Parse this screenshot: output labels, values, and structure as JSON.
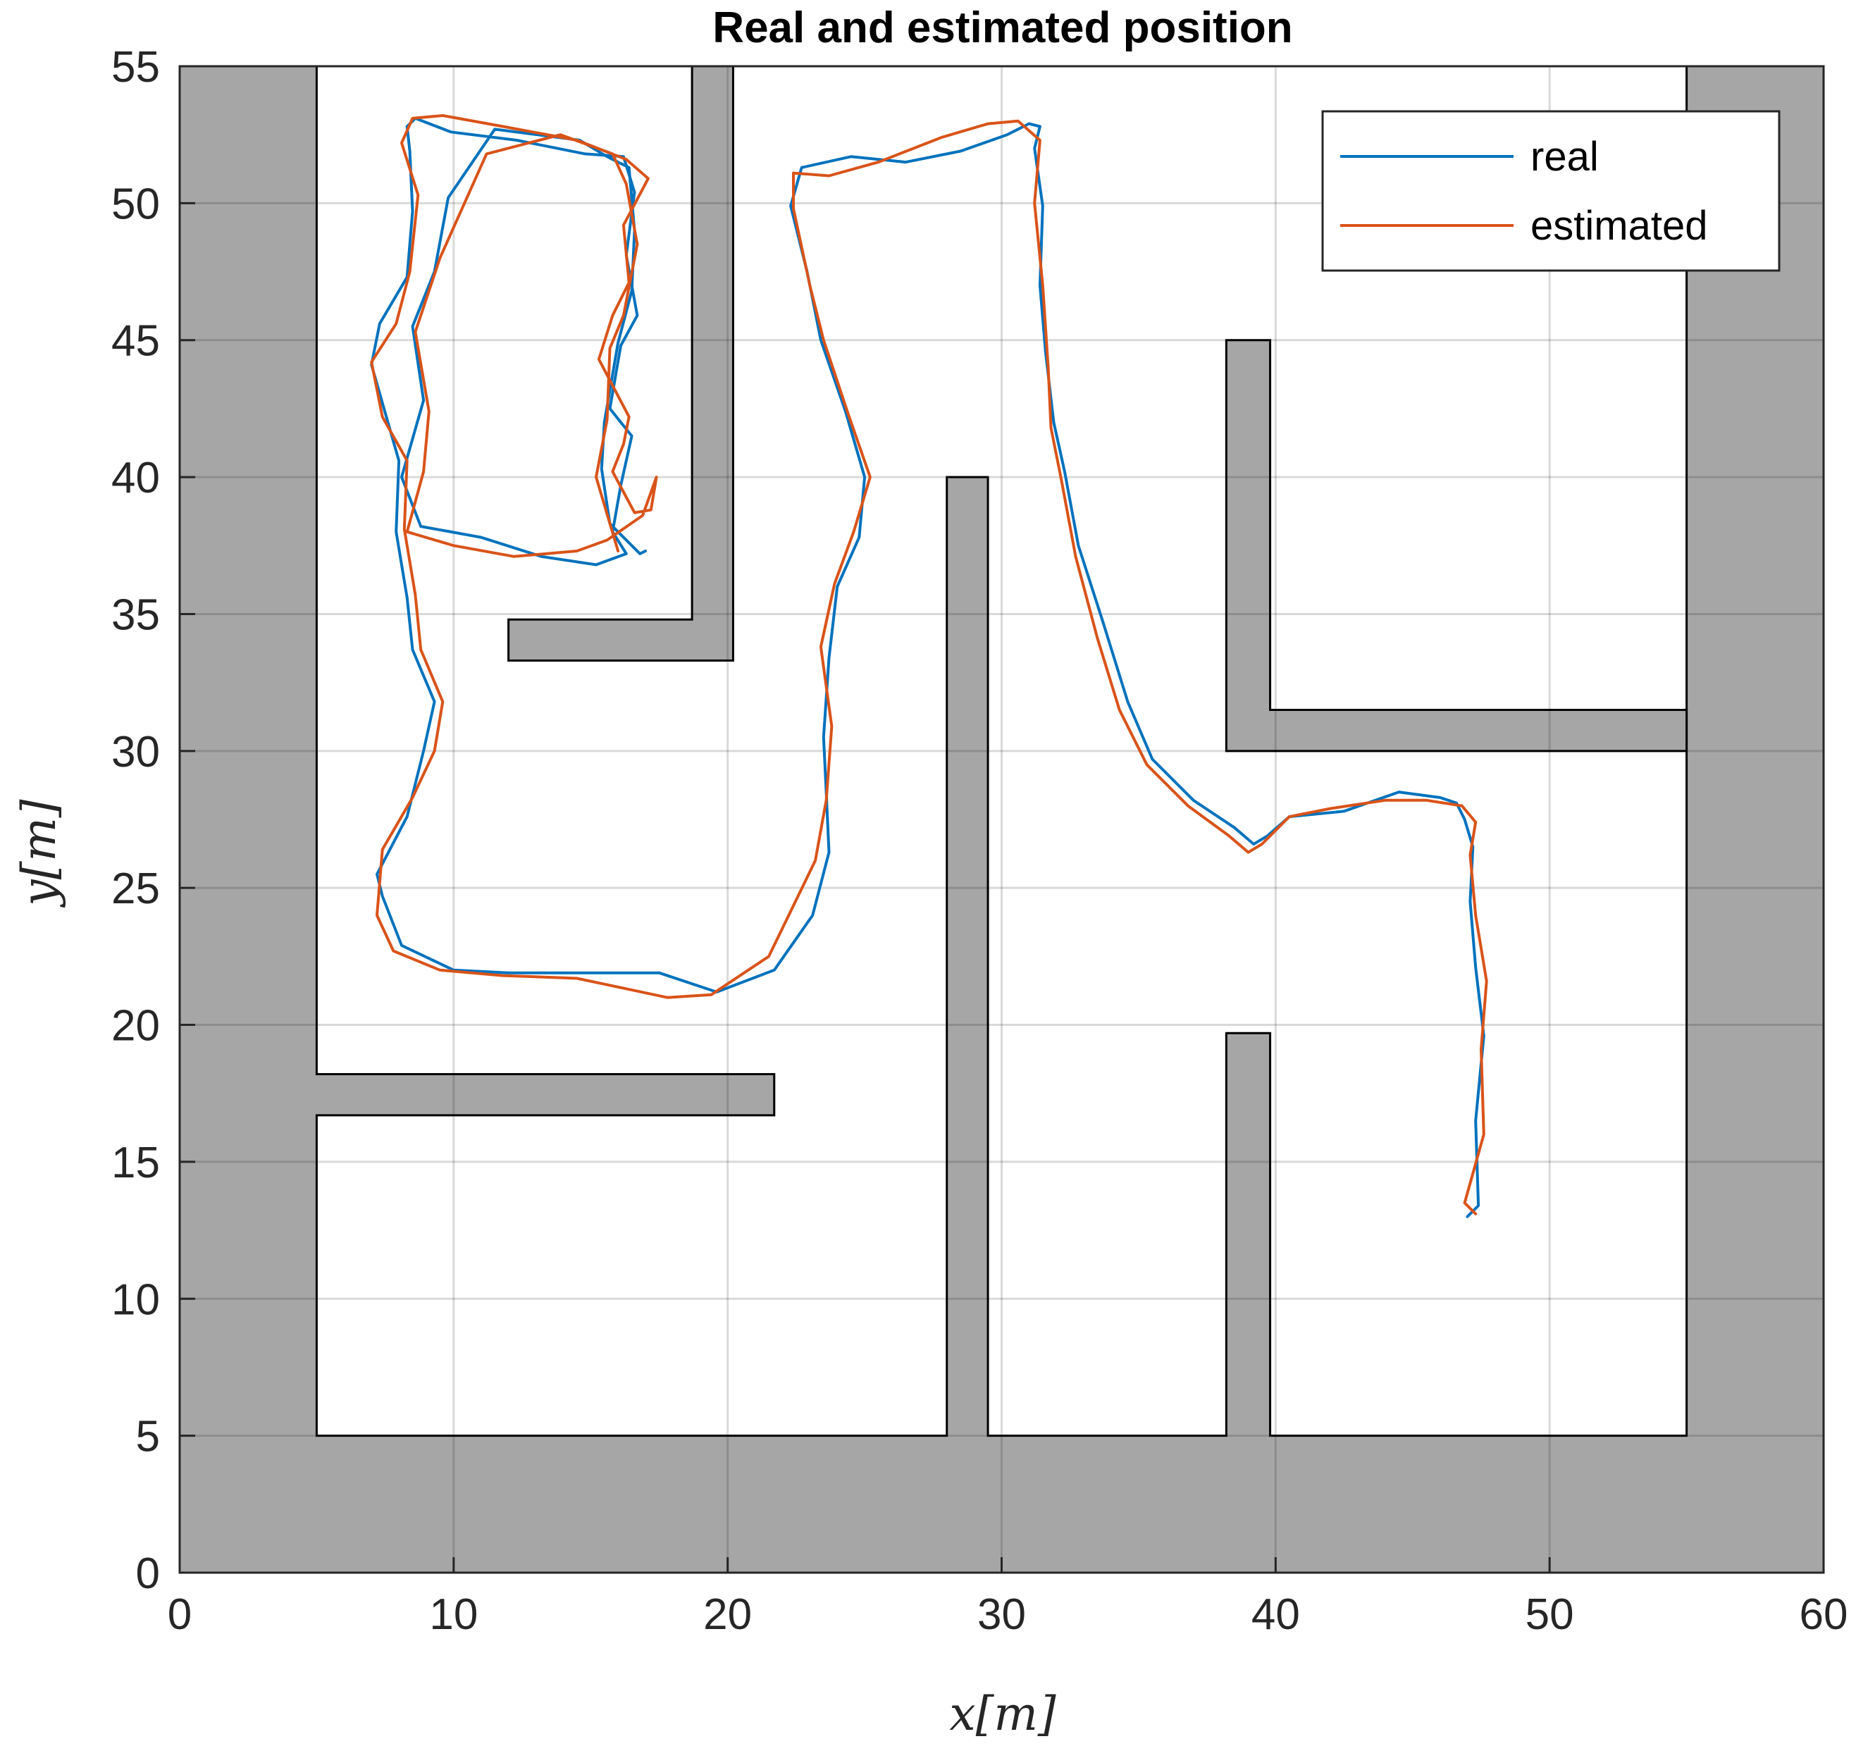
{
  "chart_data": {
    "type": "line",
    "title": "Real and estimated position",
    "xlabel": "x[m]",
    "ylabel": "y[m]",
    "xlim": [
      0,
      60
    ],
    "ylim": [
      0,
      55
    ],
    "x_ticks": [
      "0",
      "10",
      "20",
      "30",
      "40",
      "50",
      "60"
    ],
    "y_ticks": [
      "0",
      "5",
      "10",
      "15",
      "20",
      "25",
      "30",
      "35",
      "40",
      "45",
      "50",
      "55"
    ],
    "grid": true,
    "legend_position": "top-right",
    "colors": {
      "real": "#0072BD",
      "estimated": "#D95319",
      "walls": "#A6A6A6"
    },
    "obstacles": [
      {
        "name": "outer-wall",
        "polygon": [
          [
            0,
            0
          ],
          [
            60,
            0
          ],
          [
            60,
            55
          ],
          [
            55,
            55
          ],
          [
            55,
            5
          ],
          [
            39.8,
            5
          ],
          [
            39.8,
            19.7
          ],
          [
            38.2,
            19.7
          ],
          [
            38.2,
            5
          ],
          [
            29.5,
            5
          ],
          [
            29.5,
            40
          ],
          [
            28,
            40
          ],
          [
            28,
            5
          ],
          [
            5,
            5
          ],
          [
            5,
            16.7
          ],
          [
            21.7,
            16.7
          ],
          [
            21.7,
            18.2
          ],
          [
            5,
            18.2
          ],
          [
            5,
            55
          ],
          [
            0,
            55
          ]
        ]
      },
      {
        "name": "top-wall",
        "polygon": [
          [
            18.7,
            55
          ],
          [
            20.2,
            55
          ],
          [
            20.2,
            33.3
          ],
          [
            12,
            33.3
          ],
          [
            12,
            34.8
          ],
          [
            18.7,
            34.8
          ]
        ]
      },
      {
        "name": "right-wall",
        "polygon": [
          [
            38.2,
            30
          ],
          [
            55,
            30
          ],
          [
            55,
            31.5
          ],
          [
            39.8,
            31.5
          ],
          [
            39.8,
            45
          ],
          [
            38.2,
            45
          ]
        ]
      }
    ],
    "series": [
      {
        "name": "real",
        "x": [
          47.0,
          47.4,
          47.3,
          47.6,
          47.3,
          47.1,
          47.2,
          46.9,
          46.6,
          46.0,
          44.5,
          42.5,
          40.5,
          39.7,
          39.2,
          38.5,
          37.0,
          35.5,
          34.6,
          33.7,
          32.8,
          32.3,
          31.9,
          31.6,
          31.4,
          31.5,
          31.2,
          31.4,
          31.0,
          30.2,
          28.5,
          26.5,
          24.5,
          22.7,
          22.3,
          22.9,
          23.4,
          24.3,
          25.0,
          24.8,
          24.0,
          23.7,
          23.5,
          23.6,
          23.7,
          23.1,
          21.7,
          19.6,
          17.5,
          15.0,
          12.0,
          10.0,
          8.1,
          7.4,
          7.2,
          8.3,
          8.9,
          9.3,
          8.5,
          8.3,
          7.9,
          8.0,
          7.6,
          7.0,
          7.3,
          8.3,
          8.5,
          8.4,
          8.3,
          8.6,
          9.9,
          12.3,
          14.8,
          16.2,
          16.6,
          16.3,
          16.7,
          16.1,
          15.7,
          16.5,
          16.1,
          15.8,
          16.3,
          15.2,
          13.2,
          11.0,
          8.8,
          8.1,
          8.9,
          8.5,
          9.3,
          9.8,
          11.5,
          14.6,
          15.6,
          16.4,
          16.6,
          16.5,
          16.0,
          15.5,
          15.4,
          15.7,
          16.8,
          17.0
        ],
        "y": [
          13.0,
          13.4,
          16.5,
          19.6,
          22.1,
          24.5,
          26.5,
          27.5,
          28.1,
          28.3,
          28.5,
          27.8,
          27.6,
          26.9,
          26.6,
          27.2,
          28.2,
          29.7,
          31.8,
          34.7,
          37.5,
          40.2,
          42.0,
          44.6,
          47.0,
          49.9,
          52.0,
          52.8,
          52.9,
          52.5,
          51.9,
          51.5,
          51.7,
          51.3,
          49.9,
          47.5,
          45.0,
          42.4,
          40.0,
          37.8,
          36.0,
          33.4,
          30.5,
          28.5,
          26.3,
          24.0,
          22.0,
          21.2,
          21.9,
          21.9,
          21.9,
          22.0,
          22.9,
          24.7,
          25.5,
          27.6,
          30.0,
          31.8,
          33.7,
          35.6,
          38.0,
          40.6,
          42.0,
          44.1,
          45.6,
          47.3,
          49.7,
          51.9,
          52.8,
          53.1,
          52.6,
          52.3,
          51.8,
          51.7,
          50.4,
          48.1,
          45.9,
          44.8,
          42.5,
          41.5,
          39.7,
          38.0,
          37.2,
          36.8,
          37.1,
          37.8,
          38.2,
          40.0,
          42.8,
          45.5,
          47.5,
          50.2,
          52.7,
          52.3,
          51.7,
          51.3,
          49.0,
          46.8,
          44.9,
          42.0,
          40.3,
          38.3,
          37.2,
          37.3
        ]
      },
      {
        "name": "estimated",
        "x": [
          47.3,
          46.9,
          47.6,
          47.5,
          47.7,
          47.3,
          47.1,
          47.3,
          46.8,
          45.5,
          44.0,
          42.0,
          40.5,
          39.5,
          39.0,
          38.3,
          36.8,
          35.3,
          34.3,
          33.5,
          32.7,
          32.2,
          31.8,
          31.7,
          31.5,
          31.2,
          31.4,
          30.6,
          29.5,
          27.8,
          25.5,
          23.7,
          22.4,
          22.4,
          23.0,
          23.5,
          24.4,
          25.2,
          24.6,
          23.9,
          23.4,
          23.8,
          23.6,
          23.2,
          21.5,
          19.4,
          17.8,
          14.5,
          11.8,
          9.5,
          7.8,
          7.2,
          7.4,
          8.5,
          9.3,
          9.6,
          8.8,
          8.6,
          8.2,
          8.3,
          7.4,
          7.0,
          7.9,
          8.4,
          8.7,
          8.1,
          8.5,
          9.6,
          11.8,
          14.5,
          16.3,
          17.1,
          16.2,
          16.4,
          15.8,
          15.3,
          16.4,
          16.2,
          15.8,
          16.6,
          17.2,
          17.4,
          16.9,
          15.6,
          14.5,
          12.2,
          10.0,
          8.3,
          8.9,
          9.1,
          8.6,
          9.5,
          11.2,
          13.9,
          15.8,
          16.3,
          16.7,
          16.2,
          15.7,
          15.6,
          15.2,
          16.0
        ],
        "y": [
          13.1,
          13.5,
          16.0,
          19.1,
          21.6,
          24.0,
          26.2,
          27.4,
          28.0,
          28.2,
          28.2,
          27.9,
          27.6,
          26.6,
          26.3,
          26.9,
          28.0,
          29.5,
          31.5,
          34.1,
          37.1,
          39.8,
          41.8,
          44.0,
          47.0,
          50.0,
          52.3,
          53.0,
          52.9,
          52.4,
          51.5,
          51.0,
          51.1,
          49.8,
          47.0,
          45.0,
          42.3,
          40.0,
          38.0,
          36.1,
          33.8,
          30.9,
          28.2,
          26.0,
          22.5,
          21.1,
          21.0,
          21.7,
          21.8,
          22.0,
          22.7,
          24.0,
          26.4,
          28.3,
          30.0,
          31.8,
          33.7,
          35.7,
          38.1,
          40.6,
          42.2,
          44.2,
          45.6,
          47.5,
          50.3,
          52.2,
          53.1,
          53.2,
          52.8,
          52.3,
          51.6,
          50.9,
          49.2,
          47.1,
          45.9,
          44.3,
          42.2,
          41.2,
          40.2,
          38.7,
          38.8,
          40.0,
          38.6,
          37.7,
          37.3,
          37.1,
          37.5,
          38.0,
          40.2,
          42.4,
          45.3,
          48.0,
          51.8,
          52.5,
          51.8,
          50.7,
          48.5,
          45.9,
          44.7,
          42.1,
          40.0,
          37.3
        ]
      }
    ]
  }
}
